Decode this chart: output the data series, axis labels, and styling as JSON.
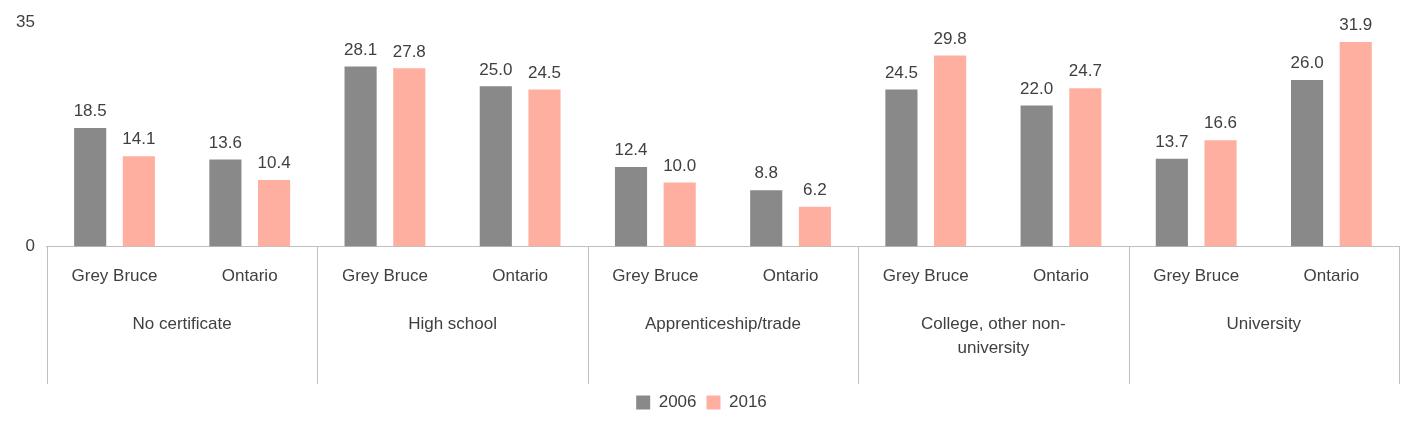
{
  "chart_data": {
    "type": "bar",
    "categories": [
      "Grey Bruce",
      "Ontario",
      "Grey Bruce",
      "Ontario",
      "Grey Bruce",
      "Ontario",
      "Grey Bruce",
      "Ontario",
      "Grey Bruce",
      "Ontario"
    ],
    "annotations": [
      "No certificate",
      "High school",
      "Apprenticeship/trade",
      "College, other non-university",
      "University"
    ],
    "series": [
      {
        "name": "2006",
        "color": "#898989",
        "values": [
          18.5,
          13.6,
          28.1,
          25.0,
          12.4,
          8.8,
          24.5,
          22.0,
          13.7,
          26.0
        ],
        "value_labels": [
          "18.5",
          "13.6",
          "28.1",
          "25.0",
          "12.4",
          "8.8",
          "24.5",
          "22.0",
          "13.7",
          "26.0"
        ]
      },
      {
        "name": "2016",
        "color": "#ffafa0",
        "values": [
          14.1,
          10.4,
          27.8,
          24.5,
          10.0,
          6.2,
          29.8,
          24.7,
          16.6,
          31.9
        ],
        "value_labels": [
          "14.1",
          "10.4",
          "27.8",
          "24.5",
          "10.0",
          "6.2",
          "29.8",
          "24.7",
          "16.6",
          "31.9"
        ]
      }
    ],
    "ylim": [
      0,
      35
    ],
    "yticks": [
      0,
      35
    ],
    "grid": false,
    "legend": "bottom"
  }
}
